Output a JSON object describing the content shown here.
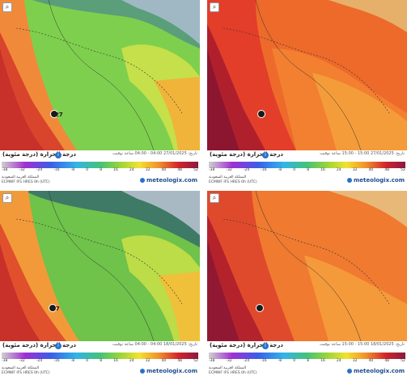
{
  "panels": [
    {
      "title": "درجة الحرارة (درجة مئوية)",
      "meta": "تاريخ: 27/01/2025 04:00 - 04:00 ساعة توقيت",
      "model": "ECMWF IFS HRES 0h (UTC)",
      "region": "المملكة العربية السعودية",
      "brand": "meteologix.com",
      "value_label": "27",
      "map_style": "cool"
    },
    {
      "title": "درجة الحرارة (درجة مئوية)",
      "meta": "تاريخ: 27/01/2025 15:00 - 15:00 ساعة توقيت",
      "model": "ECMWF IFS HRES 0h (UTC)",
      "region": "المملكة العربية السعودية",
      "brand": "meteologix.com",
      "value_label": "",
      "map_style": "hot"
    },
    {
      "title": "درجة الحرارة (درجة مئوية)",
      "meta": "تاريخ: 18/01/2025 04:00 - 04:00 ساعة توقيت",
      "model": "ECMWF IFS HRES 0h (UTC)",
      "region": "المملكة العربية السعودية",
      "brand": "meteologix.com",
      "value_label": "27",
      "map_style": "cool"
    },
    {
      "title": "درجة الحرارة (درجة مئوية)",
      "meta": "تاريخ: 18/01/2025 15:00 - 15:00 ساعة توقيت",
      "model": "ECMWF IFS HRES 0h (UTC)",
      "region": "المملكة العربية السعودية",
      "brand": "meteologix.com",
      "value_label": "",
      "map_style": "hot"
    }
  ],
  "scale_ticks": [
    "-38",
    "-36",
    "-32",
    "-28",
    "-24",
    "-20",
    "-16",
    "-12",
    "-8",
    "-4",
    "0",
    "4",
    "8",
    "12",
    "16",
    "20",
    "24",
    "28",
    "32",
    "36",
    "40",
    "44",
    "48",
    "52"
  ],
  "icons": {
    "zoom": "zoom-icon",
    "info": "info-icon",
    "location": "location-pin-icon",
    "brand": "meteologix-logo-icon"
  },
  "colors": {
    "cool_land": "#78c850",
    "cool_north": "#4e8c6a",
    "cool_coast": "#e4572e",
    "hot_land": "#f0702c",
    "hot_coast": "#b5202a",
    "sea": "#d13a2b",
    "info": "#2a72c9",
    "brand": "#1e4e8c"
  }
}
